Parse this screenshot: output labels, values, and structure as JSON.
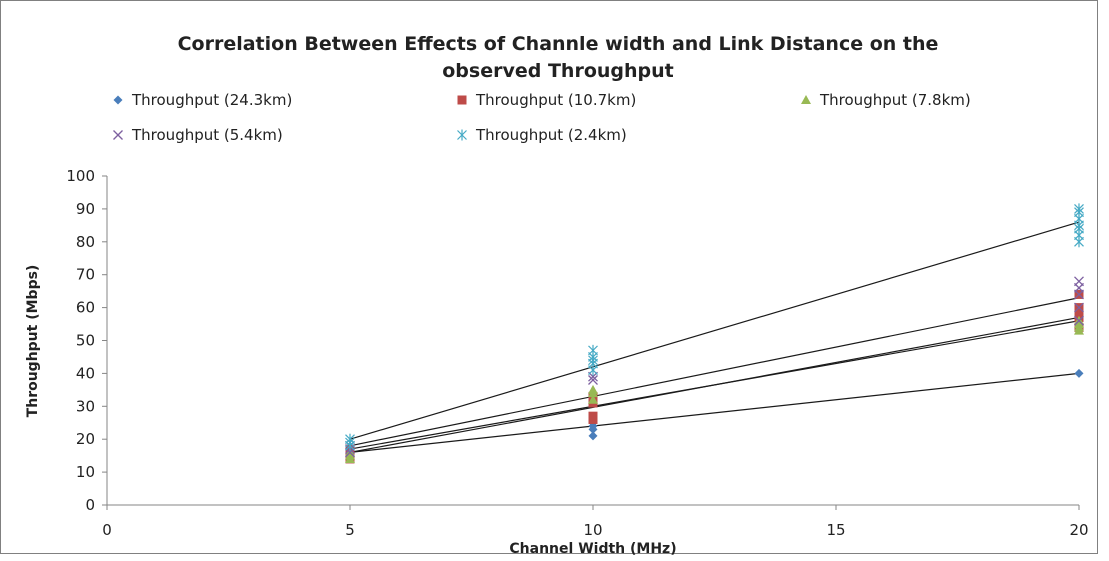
{
  "chart_data": {
    "type": "scatter",
    "title_line1": "Correlation Between Effects of Channle width and Link Distance on the",
    "title_line2": "observed Throughput",
    "xlabel": "Channel Width (MHz)",
    "ylabel": "Throughput (Mbps)",
    "xlim": [
      0,
      20
    ],
    "ylim": [
      0,
      100
    ],
    "xticks": [
      0,
      5,
      10,
      15,
      20
    ],
    "yticks": [
      0,
      10,
      20,
      30,
      40,
      50,
      60,
      70,
      80,
      90,
      100
    ],
    "legend_position": "top",
    "grid": false,
    "trendlines": true,
    "series": [
      {
        "name": "Throughput (24.3km)",
        "marker": "diamond",
        "color": "#4a7ebb",
        "points": [
          [
            5,
            15
          ],
          [
            5,
            16
          ],
          [
            5,
            17
          ],
          [
            10,
            21
          ],
          [
            10,
            23
          ],
          [
            10,
            24
          ],
          [
            10,
            25
          ],
          [
            20,
            40
          ]
        ],
        "trend": [
          [
            5,
            16
          ],
          [
            20,
            40
          ]
        ]
      },
      {
        "name": "Throughput (10.7km)",
        "marker": "square",
        "color": "#be4b48",
        "points": [
          [
            5,
            14
          ],
          [
            5,
            15
          ],
          [
            5,
            16
          ],
          [
            5,
            17
          ],
          [
            10,
            26
          ],
          [
            10,
            27
          ],
          [
            10,
            31
          ],
          [
            10,
            32
          ],
          [
            10,
            33
          ],
          [
            20,
            54
          ],
          [
            20,
            57
          ],
          [
            20,
            59
          ],
          [
            20,
            60
          ],
          [
            20,
            64
          ]
        ],
        "trend": [
          [
            5,
            16
          ],
          [
            20,
            57
          ]
        ]
      },
      {
        "name": "Throughput (7.8km)",
        "marker": "triangle",
        "color": "#98b954",
        "points": [
          [
            5,
            14
          ],
          [
            5,
            15
          ],
          [
            5,
            16
          ],
          [
            10,
            32
          ],
          [
            10,
            34
          ],
          [
            10,
            35
          ],
          [
            20,
            53
          ],
          [
            20,
            54
          ],
          [
            20,
            55
          ],
          [
            20,
            56
          ]
        ],
        "trend": [
          [
            5,
            17
          ],
          [
            20,
            56
          ]
        ]
      },
      {
        "name": "Throughput (5.4km)",
        "marker": "x",
        "color": "#7d60a0",
        "points": [
          [
            5,
            16
          ],
          [
            5,
            17
          ],
          [
            5,
            18
          ],
          [
            10,
            38
          ],
          [
            10,
            39
          ],
          [
            20,
            56
          ],
          [
            20,
            60
          ],
          [
            20,
            64
          ],
          [
            20,
            66
          ],
          [
            20,
            68
          ]
        ],
        "trend": [
          [
            5,
            18
          ],
          [
            20,
            63
          ]
        ]
      },
      {
        "name": "Throughput (2.4km)",
        "marker": "asterisk",
        "color": "#46aac5",
        "points": [
          [
            5,
            18
          ],
          [
            5,
            19
          ],
          [
            5,
            20
          ],
          [
            10,
            41
          ],
          [
            10,
            43
          ],
          [
            10,
            44
          ],
          [
            10,
            45
          ],
          [
            10,
            47
          ],
          [
            20,
            80
          ],
          [
            20,
            82
          ],
          [
            20,
            84
          ],
          [
            20,
            85
          ],
          [
            20,
            87
          ],
          [
            20,
            89
          ],
          [
            20,
            90
          ]
        ],
        "trend": [
          [
            5,
            20
          ],
          [
            20,
            86
          ]
        ]
      }
    ]
  }
}
